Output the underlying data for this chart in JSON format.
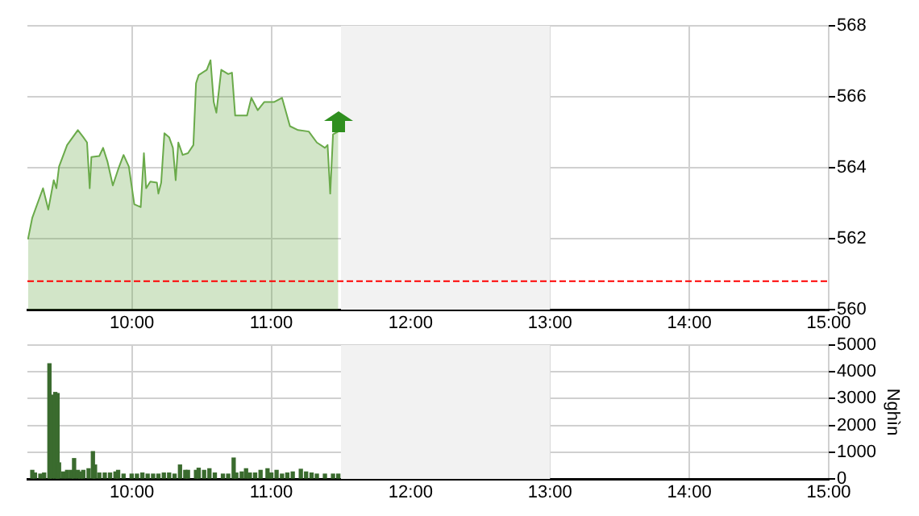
{
  "chart_data": [
    {
      "type": "area",
      "color": "#6aaa4a",
      "marker": "none",
      "grid": true,
      "x": [
        9.254,
        9.285,
        9.362,
        9.4,
        9.439,
        9.458,
        9.477,
        9.535,
        9.612,
        9.651,
        9.678,
        9.697,
        9.709,
        9.766,
        9.793,
        9.824,
        9.863,
        9.901,
        9.94,
        9.978,
        10.017,
        10.063,
        10.086,
        10.102,
        10.132,
        10.179,
        10.19,
        10.21,
        10.233,
        10.267,
        10.294,
        10.314,
        10.333,
        10.364,
        10.402,
        10.441,
        10.46,
        10.479,
        10.537,
        10.564,
        10.587,
        10.606,
        10.641,
        10.691,
        10.718,
        10.741,
        10.826,
        10.857,
        10.903,
        10.949,
        11.019,
        11.077,
        11.134,
        11.192,
        11.269,
        11.327,
        11.385,
        11.404,
        11.423,
        11.443,
        11.481
      ],
      "values": [
        561.98,
        562.59,
        563.42,
        562.82,
        563.65,
        563.42,
        564.03,
        564.64,
        565.06,
        564.86,
        564.71,
        563.42,
        564.3,
        564.33,
        564.56,
        564.18,
        563.5,
        563.95,
        564.36,
        564.03,
        562.97,
        562.89,
        564.41,
        563.42,
        563.61,
        563.58,
        563.27,
        563.58,
        564.97,
        564.86,
        564.56,
        563.65,
        564.71,
        564.36,
        564.41,
        564.64,
        566.38,
        566.61,
        566.76,
        567.03,
        565.85,
        565.55,
        566.76,
        566.64,
        566.68,
        565.47,
        565.47,
        565.97,
        565.62,
        565.85,
        565.85,
        565.97,
        565.17,
        565.06,
        565.02,
        564.71,
        564.56,
        564.64,
        563.27,
        564.94,
        565.02
      ],
      "xlim": [
        9.25,
        15
      ],
      "xticks": [
        {
          "value": 10,
          "label": "10:00"
        },
        {
          "value": 11,
          "label": "11:00"
        },
        {
          "value": 12,
          "label": "12:00"
        },
        {
          "value": 13,
          "label": "13:00"
        },
        {
          "value": 14,
          "label": "14:00"
        },
        {
          "value": 15,
          "label": "15:00"
        }
      ],
      "ylim": [
        560,
        568
      ],
      "yticks": [
        560,
        562,
        564,
        566,
        568
      ],
      "bands": [
        {
          "axis": "x",
          "from": 11.5,
          "to": 13,
          "color": "#f2f2f2"
        }
      ],
      "ref_lines": [
        {
          "axis": "y",
          "value": 560.8,
          "color": "#ff0000",
          "line_style": "dashed"
        }
      ]
    },
    {
      "type": "bar",
      "color": "#3a6b2e",
      "grid": true,
      "ylabel": "Nghìn",
      "x": [
        9.285,
        9.304,
        9.343,
        9.37,
        9.408,
        9.427,
        9.45,
        9.466,
        9.477,
        9.508,
        9.535,
        9.566,
        9.585,
        9.612,
        9.631,
        9.651,
        9.689,
        9.72,
        9.735,
        9.766,
        9.805,
        9.843,
        9.882,
        9.901,
        9.94,
        9.998,
        10.036,
        10.075,
        10.113,
        10.152,
        10.19,
        10.229,
        10.267,
        10.306,
        10.345,
        10.383,
        10.402,
        10.46,
        10.479,
        10.518,
        10.556,
        10.595,
        10.653,
        10.691,
        10.73,
        10.749,
        10.788,
        10.819,
        10.846,
        10.884,
        10.923,
        10.973,
        11.0,
        11.038,
        11.077,
        11.115,
        11.154,
        11.212,
        11.25,
        11.289,
        11.327,
        11.385,
        11.443,
        11.481
      ],
      "values": [
        320,
        220,
        180,
        220,
        4300,
        3130,
        3230,
        3190,
        600,
        260,
        320,
        320,
        760,
        320,
        260,
        320,
        380,
        1020,
        520,
        220,
        220,
        220,
        260,
        320,
        180,
        180,
        180,
        220,
        180,
        180,
        180,
        220,
        220,
        180,
        520,
        320,
        320,
        320,
        400,
        320,
        380,
        220,
        180,
        180,
        780,
        220,
        260,
        380,
        220,
        220,
        320,
        380,
        220,
        320,
        180,
        220,
        260,
        360,
        260,
        220,
        180,
        180,
        180,
        180
      ],
      "xlim": [
        9.25,
        15
      ],
      "xticks": [
        {
          "value": 10,
          "label": "10:00"
        },
        {
          "value": 11,
          "label": "11:00"
        },
        {
          "value": 12,
          "label": "12:00"
        },
        {
          "value": 13,
          "label": "13:00"
        },
        {
          "value": 14,
          "label": "14:00"
        },
        {
          "value": 15,
          "label": "15:00"
        }
      ],
      "ylim": [
        0,
        5000
      ],
      "yticks": [
        0,
        1000,
        2000,
        3000,
        4000,
        5000
      ],
      "bands": [
        {
          "axis": "x",
          "from": 11.5,
          "to": 13,
          "color": "#f2f2f2"
        }
      ]
    }
  ]
}
